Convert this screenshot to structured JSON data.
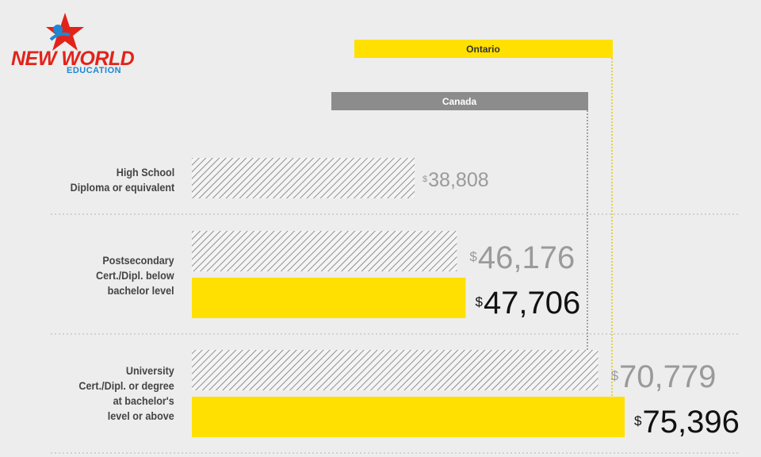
{
  "logo": {
    "name": "NEW WORLD",
    "sub": "EDUCATION"
  },
  "colors": {
    "ontario": "#ffe000",
    "canada": "#8c8c8c",
    "background": "#ededed",
    "hatch": "#777777"
  },
  "chart_data": {
    "type": "bar",
    "orientation": "horizontal",
    "currency_symbol": "$",
    "categories": [
      "High School\nDiploma or equivalent",
      "Postsecondary\nCert./Dipl. below\nbachelor level",
      "University\nCert./Dipl. or degree\nat bachelor's\nlevel or above"
    ],
    "series": [
      {
        "name": "Canada",
        "values": [
          38808,
          46176,
          70779
        ],
        "labels": [
          "38,808",
          "46,176",
          "70,779"
        ]
      },
      {
        "name": "Ontario",
        "values": [
          null,
          47706,
          75396
        ],
        "labels": [
          "",
          "47,706",
          "75,396"
        ]
      }
    ],
    "legend": [
      "Ontario",
      "Canada"
    ]
  }
}
